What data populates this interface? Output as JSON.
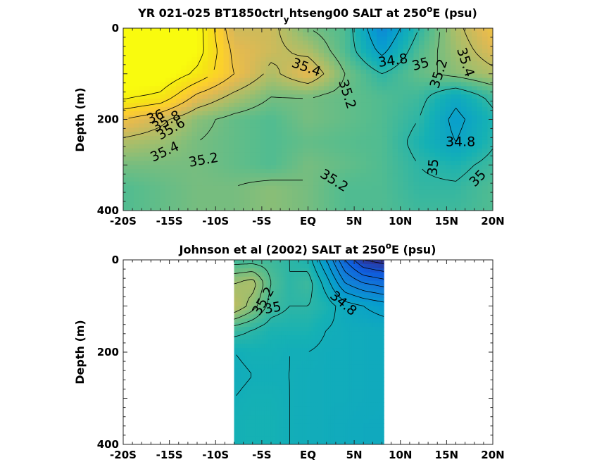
{
  "chart_data": [
    {
      "type": "heatmap",
      "title_main": "YR 021-025 BT1850ctrl",
      "title_sub": "y",
      "title_rest": "htseng00 SALT at 250",
      "title_sup": "o",
      "title_end": "E (psu)",
      "ylabel": "Depth (m)",
      "xlabel": "",
      "xlim": [
        -20,
        20
      ],
      "ylim": [
        400,
        0
      ],
      "y_reversed": true,
      "xticks": [
        -20,
        -15,
        -10,
        -5,
        0,
        5,
        10,
        15,
        20
      ],
      "xtick_labels": [
        "-20S",
        "-15S",
        "-10S",
        "-5S",
        "EQ",
        "5N",
        "10N",
        "15N",
        "20N"
      ],
      "yticks": [
        0,
        200,
        400
      ],
      "ytick_labels": [
        "0",
        "200",
        "400"
      ],
      "colormap": "parula",
      "x": [
        -20,
        -16,
        -12,
        -8,
        -4,
        0,
        4,
        8,
        12,
        16,
        20
      ],
      "depth": [
        0,
        50,
        100,
        150,
        200,
        250,
        300,
        350,
        400
      ],
      "values": [
        [
          36.3,
          36.3,
          36.1,
          35.45,
          35.45,
          35.2,
          35.1,
          34.6,
          35.0,
          35.35,
          35.6
        ],
        [
          36.3,
          36.3,
          36.1,
          35.55,
          35.45,
          35.35,
          35.1,
          34.75,
          35.1,
          35.3,
          35.5
        ],
        [
          36.2,
          36.2,
          35.95,
          35.6,
          35.35,
          35.55,
          35.2,
          35.0,
          35.15,
          35.25,
          35.35
        ],
        [
          36.05,
          35.95,
          35.55,
          35.35,
          35.2,
          35.2,
          35.15,
          35.1,
          35.05,
          34.85,
          35.05
        ],
        [
          35.6,
          35.45,
          35.25,
          35.15,
          35.1,
          35.2,
          35.15,
          35.1,
          35.0,
          34.75,
          34.95
        ],
        [
          35.35,
          35.3,
          35.2,
          35.15,
          35.1,
          35.15,
          35.12,
          35.1,
          34.95,
          34.8,
          34.98
        ],
        [
          35.2,
          35.2,
          35.2,
          35.15,
          35.1,
          35.2,
          35.15,
          35.1,
          35.0,
          34.95,
          35.05
        ],
        [
          35.1,
          35.15,
          35.2,
          35.2,
          35.25,
          35.2,
          35.1,
          35.1,
          35.02,
          35.02,
          35.1
        ],
        [
          35.1,
          35.15,
          35.2,
          35.2,
          35.25,
          35.2,
          35.1,
          35.1,
          35.05,
          35.05,
          35.1
        ]
      ],
      "contour_levels": [
        34.8,
        35,
        35.2,
        35.4,
        35.6,
        35.8,
        36
      ],
      "contour_labels": [
        {
          "text": "36",
          "x": -16.5,
          "y": 195,
          "rot": -22
        },
        {
          "text": "35.8",
          "x": -15.3,
          "y": 205,
          "rot": -28
        },
        {
          "text": "35.6",
          "x": -14.8,
          "y": 222,
          "rot": -30
        },
        {
          "text": "35.4",
          "x": -15.5,
          "y": 272,
          "rot": -25
        },
        {
          "text": "35.2",
          "x": -11.3,
          "y": 290,
          "rot": -10
        },
        {
          "text": "35.4",
          "x": -0.2,
          "y": 87,
          "rot": 20
        },
        {
          "text": "35.2",
          "x": 4.2,
          "y": 145,
          "rot": 72
        },
        {
          "text": "35.2",
          "x": 2.8,
          "y": 335,
          "rot": 32
        },
        {
          "text": "34.8",
          "x": 9.2,
          "y": 72,
          "rot": -8
        },
        {
          "text": "35",
          "x": 12.2,
          "y": 80,
          "rot": -15
        },
        {
          "text": "35.2",
          "x": 14.2,
          "y": 100,
          "rot": -72
        },
        {
          "text": "35.4",
          "x": 17.0,
          "y": 75,
          "rot": 72
        },
        {
          "text": "34.8",
          "x": 16.5,
          "y": 250,
          "rot": 0
        },
        {
          "text": "35",
          "x": 13.6,
          "y": 305,
          "rot": -85
        },
        {
          "text": "35",
          "x": 18.4,
          "y": 330,
          "rot": -45
        }
      ]
    },
    {
      "type": "heatmap",
      "title_main": "Johnson et al (2002) SALT at 250",
      "title_sup": "o",
      "title_end": "E (psu)",
      "ylabel": "Depth (m)",
      "xlabel": "",
      "xlim": [
        -20,
        20
      ],
      "ylim": [
        400,
        0
      ],
      "y_reversed": true,
      "data_x_range": [
        -8,
        8.2
      ],
      "xticks": [
        -20,
        -15,
        -10,
        -5,
        0,
        5,
        10,
        15,
        20
      ],
      "xtick_labels": [
        "-20S",
        "-15S",
        "-10S",
        "-5S",
        "EQ",
        "5N",
        "10N",
        "15N",
        "20N"
      ],
      "yticks": [
        0,
        200,
        400
      ],
      "ytick_labels": [
        "0",
        "200",
        "400"
      ],
      "colormap": "parula",
      "x": [
        -8,
        -6,
        -4,
        -2,
        0,
        2,
        4,
        6,
        8.2
      ],
      "depth": [
        0,
        50,
        100,
        150,
        200,
        250,
        300,
        350,
        400
      ],
      "values": [
        [
          35.05,
          35.05,
          35.05,
          35.0,
          34.95,
          34.7,
          34.4,
          34.2,
          34.15
        ],
        [
          35.3,
          35.35,
          35.1,
          35.0,
          35.05,
          34.85,
          34.6,
          34.5,
          34.45
        ],
        [
          35.4,
          35.25,
          35.05,
          35.0,
          35.0,
          34.95,
          34.85,
          34.8,
          34.75
        ],
        [
          35.05,
          35.0,
          34.95,
          34.95,
          34.95,
          34.9,
          34.88,
          34.87,
          34.86
        ],
        [
          34.9,
          34.92,
          34.92,
          34.9,
          34.9,
          34.88,
          34.88,
          34.87,
          34.86
        ],
        [
          34.88,
          34.9,
          34.9,
          34.9,
          34.89,
          34.88,
          34.88,
          34.87,
          34.86
        ],
        [
          34.9,
          34.92,
          34.92,
          34.9,
          34.89,
          34.88,
          34.88,
          34.87,
          34.86
        ],
        [
          34.92,
          34.93,
          34.93,
          34.9,
          34.89,
          34.88,
          34.87,
          34.86,
          34.86
        ],
        [
          34.92,
          34.93,
          34.93,
          34.9,
          34.89,
          34.88,
          34.87,
          34.86,
          34.86
        ]
      ],
      "contour_levels": [
        34.2,
        34.3,
        34.4,
        34.5,
        34.6,
        34.7,
        34.8,
        34.9,
        35,
        35.1,
        35.2,
        35.3,
        35.4
      ],
      "contour_labels": [
        {
          "text": "35.2",
          "x": -4.8,
          "y": 90,
          "rot": -60
        },
        {
          "text": "35",
          "x": -3.8,
          "y": 105,
          "rot": -10
        },
        {
          "text": "34.8",
          "x": 3.8,
          "y": 95,
          "rot": 40
        }
      ]
    }
  ]
}
